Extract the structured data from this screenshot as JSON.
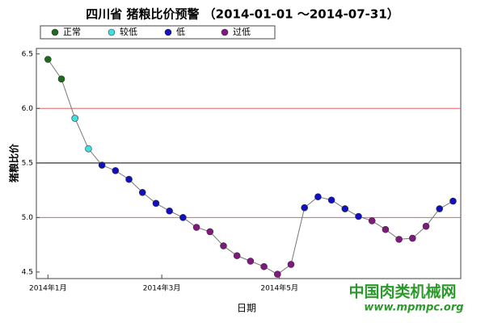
{
  "chart_data": {
    "type": "scatter",
    "title": "四川省 猪粮比价预警 （2014-01-01 ～2014-07-31）",
    "x_label": "日期",
    "y_label": "猪粮比价",
    "x": [
      0,
      7,
      14,
      21,
      28,
      35,
      42,
      49,
      56,
      63,
      70,
      77,
      84,
      91,
      98,
      105,
      112,
      119,
      126,
      133,
      140,
      147,
      154,
      161,
      168,
      175,
      182,
      189,
      196,
      203,
      210
    ],
    "series": [
      {
        "name": "正常",
        "color": "#1e6b1e",
        "values": [
          6.45,
          6.27,
          null,
          null,
          null,
          null,
          null,
          null,
          null,
          null,
          null,
          null,
          null,
          null,
          null,
          null,
          null,
          null,
          null,
          null,
          null,
          null,
          null,
          null,
          null,
          null,
          null,
          null,
          null,
          null,
          null
        ]
      },
      {
        "name": "较低",
        "color": "#40e0e0",
        "values": [
          null,
          null,
          5.91,
          5.63,
          null,
          null,
          null,
          null,
          null,
          null,
          null,
          null,
          null,
          null,
          null,
          null,
          null,
          null,
          null,
          null,
          null,
          null,
          null,
          null,
          null,
          null,
          null,
          null,
          null,
          null,
          null
        ]
      },
      {
        "name": "低",
        "color": "#1010c0",
        "values": [
          null,
          null,
          null,
          null,
          5.48,
          5.43,
          5.35,
          5.23,
          5.13,
          5.06,
          5.0,
          null,
          null,
          null,
          null,
          null,
          null,
          null,
          null,
          5.09,
          5.19,
          5.16,
          5.08,
          5.01,
          null,
          null,
          null,
          null,
          null,
          5.08,
          5.15
        ]
      },
      {
        "name": "过低",
        "color": "#801880",
        "values": [
          null,
          null,
          null,
          null,
          null,
          null,
          null,
          null,
          null,
          null,
          null,
          4.91,
          4.87,
          4.74,
          4.65,
          4.6,
          4.55,
          4.48,
          4.57,
          null,
          null,
          null,
          null,
          null,
          4.97,
          4.89,
          4.8,
          4.81,
          4.92,
          null,
          null
        ]
      }
    ],
    "line_color": "#777777",
    "xlim": [
      -6,
      214
    ],
    "ylim": [
      4.44,
      6.55
    ],
    "xticks": [
      {
        "value": 0,
        "label": "2014年1月"
      },
      {
        "value": 59,
        "label": "2014年3月"
      },
      {
        "value": 120,
        "label": "2014年5月"
      }
    ],
    "yticks": [
      4.5,
      {
        "value": 5,
        "label": "5.0"
      },
      5.5,
      {
        "value": 6,
        "label": "6.0"
      },
      6.5
    ],
    "thresholds": [
      {
        "value": 6,
        "color": "#e06060"
      },
      {
        "value": 5.5,
        "color": "#000000"
      },
      {
        "value": 5,
        "color": "#e06060"
      }
    ],
    "watermark": {
      "name": "中国肉类机械网",
      "url": "www.mpmpc.org"
    }
  }
}
